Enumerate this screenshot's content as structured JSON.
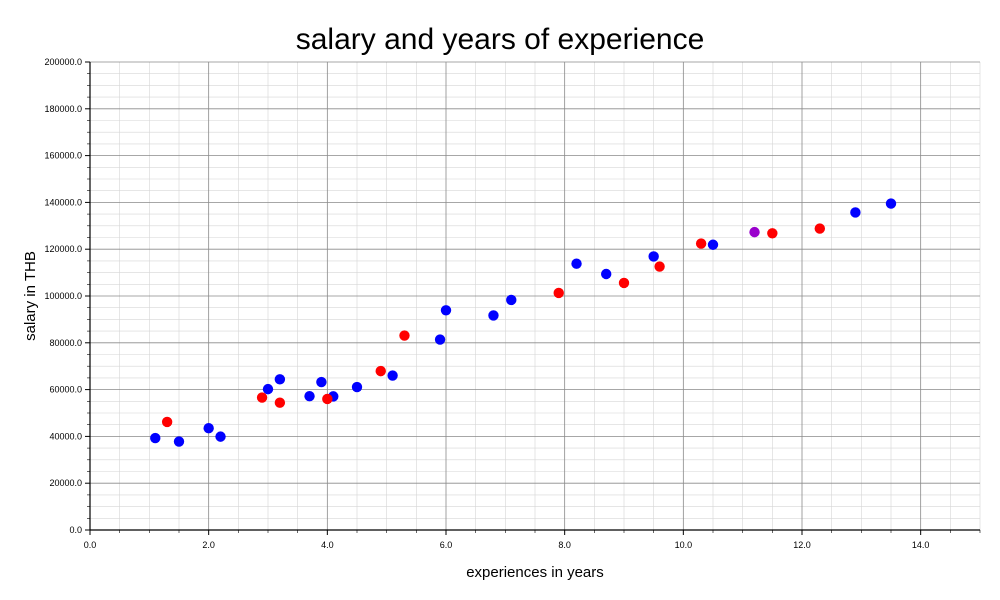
{
  "chart_data": {
    "type": "scatter",
    "title": "salary and years of experience",
    "xlabel": "experiences in years",
    "ylabel": "salary in THB",
    "xlim": [
      0,
      15
    ],
    "ylim": [
      0,
      200000
    ],
    "x_ticks": [
      "0.0",
      "2.0",
      "4.0",
      "6.0",
      "8.0",
      "10.0",
      "12.0",
      "14.0"
    ],
    "y_ticks": [
      "0.0",
      "20000.0",
      "40000.0",
      "60000.0",
      "80000.0",
      "100000.0",
      "120000.0",
      "140000.0",
      "160000.0",
      "180000.0",
      "200000.0"
    ],
    "grid": "on",
    "legend": "none",
    "colors": {
      "blue": "#0000ff",
      "red": "#ff0000",
      "purple": "#9900cc"
    },
    "series": [
      {
        "color": "#0000ff",
        "points": [
          [
            1.1,
            39300
          ],
          [
            1.5,
            37800
          ],
          [
            2.0,
            43500
          ],
          [
            2.2,
            39900
          ],
          [
            3.0,
            60200
          ],
          [
            3.2,
            64400
          ],
          [
            3.7,
            57200
          ],
          [
            3.9,
            63200
          ],
          [
            4.1,
            57100
          ],
          [
            4.5,
            61100
          ],
          [
            5.1,
            66000
          ],
          [
            5.9,
            81400
          ],
          [
            6.0,
            93900
          ],
          [
            6.8,
            91700
          ],
          [
            7.1,
            98300
          ],
          [
            8.2,
            113800
          ],
          [
            8.7,
            109400
          ],
          [
            9.5,
            116900
          ],
          [
            10.5,
            121900
          ],
          [
            12.9,
            135700
          ],
          [
            13.5,
            139500
          ]
        ]
      },
      {
        "color": "#ff0000",
        "points": [
          [
            1.3,
            46200
          ],
          [
            2.9,
            56600
          ],
          [
            3.2,
            54400
          ],
          [
            4.0,
            56000
          ],
          [
            4.9,
            67900
          ],
          [
            5.3,
            83100
          ],
          [
            7.9,
            101300
          ],
          [
            9.0,
            105600
          ],
          [
            9.6,
            112600
          ],
          [
            10.3,
            122400
          ],
          [
            11.5,
            126800
          ],
          [
            12.3,
            128800
          ]
        ]
      },
      {
        "color": "#9900cc",
        "points": [
          [
            11.2,
            127300
          ]
        ]
      }
    ]
  }
}
